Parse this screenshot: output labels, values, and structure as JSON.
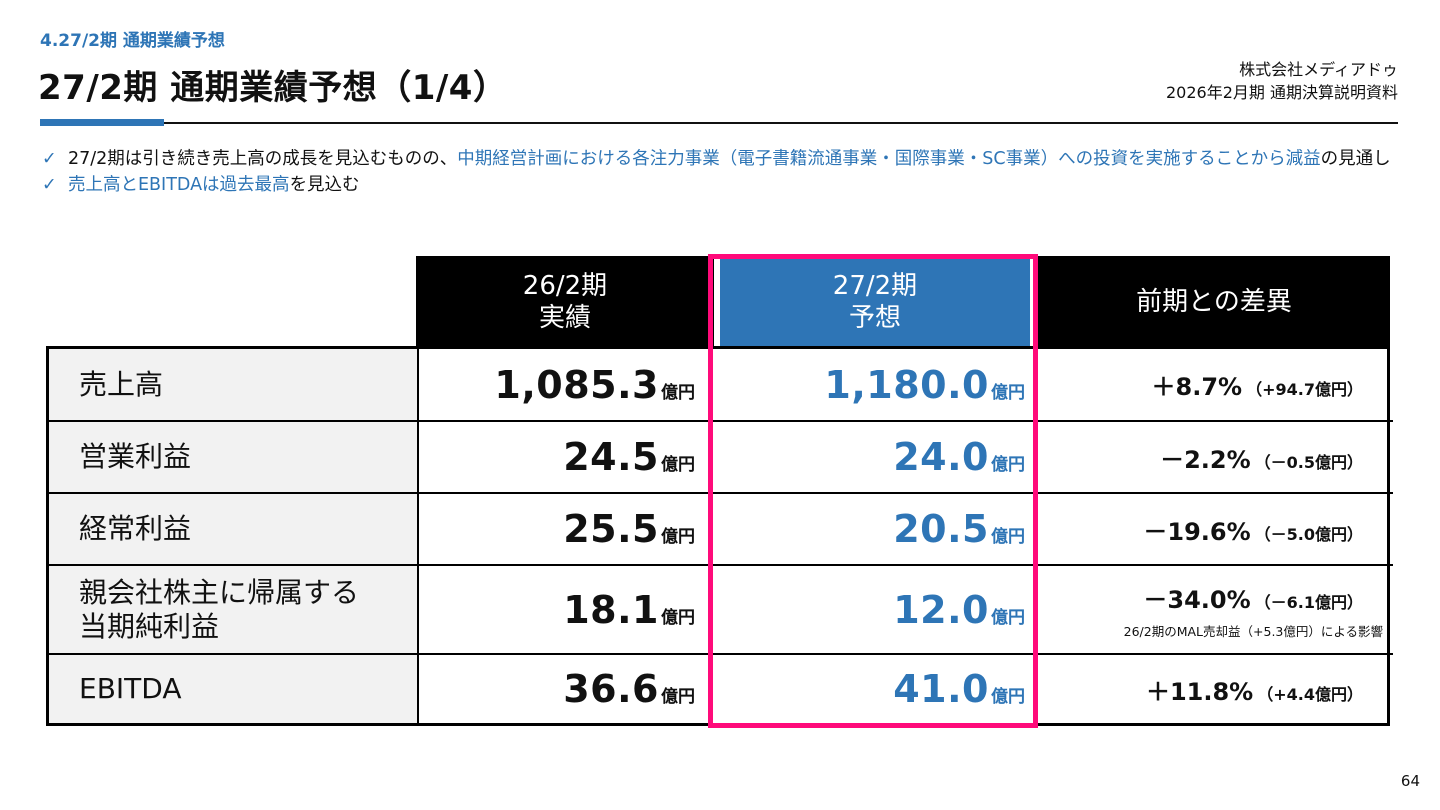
{
  "header": {
    "section": "4.27/2期 通期業績予想",
    "title": "27/2期 通期業績予想（1/4）",
    "company": "株式会社メディアドゥ",
    "document": "2026年2月期 通期決算説明資料"
  },
  "colors": {
    "accent": "#2e75b6",
    "highlight_frame": "#ff0a7a",
    "header_bg": "#000000",
    "label_bg": "#f2f2f2"
  },
  "bullets": [
    {
      "icon": "check-icon",
      "prefix": "27/2期は引き続き売上高の成長を見込むものの、",
      "highlight": "中期経営計画における各注力事業（電子書籍流通事業・国際事業・SC事業）への投資を実施することから減益",
      "suffix": "の見通し"
    },
    {
      "icon": "check-icon",
      "prefix": "",
      "highlight": "売上高とEBITDAは過去最高",
      "suffix": "を見込む"
    }
  ],
  "table": {
    "headers": {
      "actual": [
        "26/2期",
        "実績"
      ],
      "forecast": [
        "27/2期",
        "予想"
      ],
      "diff": "前期との差異"
    },
    "unit": "億円",
    "rows": [
      {
        "label": [
          "売上高"
        ],
        "actual": "1,085.3",
        "forecast": "1,180.0",
        "diff_pct": "＋8.7%",
        "diff_amt": "（+94.7億円）",
        "note": ""
      },
      {
        "label": [
          "営業利益"
        ],
        "actual": "24.5",
        "forecast": "24.0",
        "diff_pct": "－2.2%",
        "diff_amt": "（－0.5億円）",
        "note": ""
      },
      {
        "label": [
          "経常利益"
        ],
        "actual": "25.5",
        "forecast": "20.5",
        "diff_pct": "－19.6%",
        "diff_amt": "（－5.0億円）",
        "note": ""
      },
      {
        "label": [
          "親会社株主に帰属する",
          "当期純利益"
        ],
        "actual": "18.1",
        "forecast": "12.0",
        "diff_pct": "－34.0%",
        "diff_amt": "（－6.1億円）",
        "note": "26/2期のMAL売却益（+5.3億円）による影響"
      },
      {
        "label": [
          "EBITDA"
        ],
        "actual": "36.6",
        "forecast": "41.0",
        "diff_pct": "＋11.8%",
        "diff_amt": "（+4.4億円）",
        "note": ""
      }
    ]
  },
  "footer": {
    "page": "64"
  }
}
